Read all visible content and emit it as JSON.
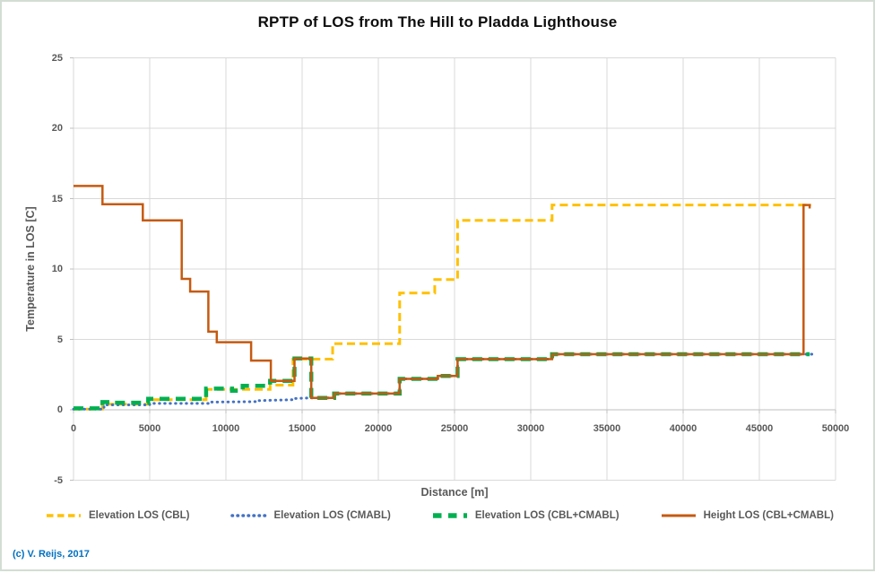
{
  "title": "RPTP of LOS from The Hill to Pladda Lighthouse",
  "copyright": "(c) V. Reijs, 2017",
  "colors": {
    "grid": "#D9D9D9",
    "axis": "#BFBFBF",
    "text": "#595959",
    "title_text": "#0d0d0d",
    "copyright_text": "#0070C0",
    "cbl_yellow": "#FFC000",
    "cmabl_blue": "#4472C4",
    "cbl_cmabl_green": "#00B050",
    "height_orange": "#C55A11"
  },
  "chart_data": {
    "type": "line",
    "title": "RPTP of LOS from The Hill to Pladda Lighthouse",
    "xlabel": "Distance [m]",
    "ylabel": "Temperature in LOS [C]",
    "xlim": [
      0,
      50000
    ],
    "ylim": [
      -5,
      25
    ],
    "x_ticks": [
      0,
      5000,
      10000,
      15000,
      20000,
      25000,
      30000,
      35000,
      40000,
      45000,
      50000
    ],
    "y_ticks": [
      25,
      20,
      15,
      10,
      5,
      0,
      -5
    ],
    "grid": true,
    "legend_position": "bottom",
    "series": [
      {
        "name": "Elevation LOS (CBL)",
        "color": "#FFC000",
        "style": "dash",
        "points": [
          [
            0,
            0.05
          ],
          [
            1900,
            0.05
          ],
          [
            1900,
            0.4
          ],
          [
            4900,
            0.4
          ],
          [
            4900,
            0.72
          ],
          [
            8700,
            0.72
          ],
          [
            8700,
            1.45
          ],
          [
            12900,
            1.45
          ],
          [
            12900,
            1.75
          ],
          [
            14400,
            1.75
          ],
          [
            14400,
            3.6
          ],
          [
            17000,
            3.6
          ],
          [
            17000,
            4.7
          ],
          [
            21400,
            4.7
          ],
          [
            21400,
            8.3
          ],
          [
            23700,
            8.3
          ],
          [
            23700,
            9.25
          ],
          [
            25200,
            9.25
          ],
          [
            25200,
            13.45
          ],
          [
            31400,
            13.45
          ],
          [
            31400,
            14.55
          ],
          [
            48400,
            14.55
          ]
        ]
      },
      {
        "name": "Elevation LOS (CMABL)",
        "color": "#4472C4",
        "style": "dot",
        "points": [
          [
            0,
            0.05
          ],
          [
            2000,
            0.05
          ],
          [
            2000,
            0.35
          ],
          [
            5000,
            0.35
          ],
          [
            5000,
            0.45
          ],
          [
            9000,
            0.45
          ],
          [
            9000,
            0.55
          ],
          [
            12000,
            0.58
          ],
          [
            12000,
            0.65
          ],
          [
            14500,
            0.72
          ],
          [
            14500,
            0.8
          ],
          [
            15600,
            0.85
          ],
          [
            17100,
            0.85
          ],
          [
            17100,
            1.15
          ],
          [
            21400,
            1.15
          ],
          [
            21400,
            2.2
          ],
          [
            23900,
            2.2
          ],
          [
            23900,
            2.4
          ],
          [
            25200,
            2.4
          ],
          [
            25200,
            3.6
          ],
          [
            31400,
            3.6
          ],
          [
            31400,
            3.95
          ],
          [
            48500,
            3.95
          ]
        ]
      },
      {
        "name": "Elevation LOS (CBL+CMABL)",
        "color": "#00B050",
        "style": "longdash",
        "points": [
          [
            0,
            0.1
          ],
          [
            1900,
            0.1
          ],
          [
            1900,
            0.55
          ],
          [
            2700,
            0.55
          ],
          [
            2700,
            0.5
          ],
          [
            4900,
            0.5
          ],
          [
            4900,
            0.78
          ],
          [
            8700,
            0.78
          ],
          [
            8700,
            1.5
          ],
          [
            10400,
            1.5
          ],
          [
            10400,
            1.35
          ],
          [
            11100,
            1.35
          ],
          [
            11100,
            1.7
          ],
          [
            12900,
            1.7
          ],
          [
            12900,
            2.05
          ],
          [
            14500,
            2.05
          ],
          [
            14500,
            3.65
          ],
          [
            15600,
            3.65
          ],
          [
            15600,
            0.85
          ],
          [
            17100,
            0.85
          ],
          [
            17100,
            1.15
          ],
          [
            21400,
            1.15
          ],
          [
            21400,
            2.2
          ],
          [
            23900,
            2.2
          ],
          [
            23900,
            2.4
          ],
          [
            25200,
            2.4
          ],
          [
            25200,
            3.6
          ],
          [
            31400,
            3.6
          ],
          [
            31400,
            3.95
          ],
          [
            48300,
            3.95
          ]
        ]
      },
      {
        "name": "Height LOS (CBL+CMABL)",
        "color": "#C55A11",
        "style": "solid",
        "points": [
          [
            0,
            15.9
          ],
          [
            1900,
            15.9
          ],
          [
            1900,
            14.6
          ],
          [
            4550,
            14.6
          ],
          [
            4550,
            13.45
          ],
          [
            7100,
            13.45
          ],
          [
            7100,
            9.3
          ],
          [
            7650,
            9.3
          ],
          [
            7650,
            8.4
          ],
          [
            8850,
            8.4
          ],
          [
            8850,
            5.55
          ],
          [
            9400,
            5.55
          ],
          [
            9400,
            4.8
          ],
          [
            11650,
            4.8
          ],
          [
            11650,
            3.5
          ],
          [
            12950,
            3.5
          ],
          [
            12950,
            2.05
          ],
          [
            14500,
            2.05
          ],
          [
            14500,
            3.65
          ],
          [
            15600,
            3.65
          ],
          [
            15600,
            0.85
          ],
          [
            17100,
            0.85
          ],
          [
            17100,
            1.15
          ],
          [
            21400,
            1.15
          ],
          [
            21400,
            2.2
          ],
          [
            23900,
            2.2
          ],
          [
            23900,
            2.4
          ],
          [
            25200,
            2.4
          ],
          [
            25200,
            3.6
          ],
          [
            31400,
            3.6
          ],
          [
            31400,
            3.95
          ],
          [
            47900,
            3.95
          ],
          [
            47900,
            14.55
          ],
          [
            48300,
            14.55
          ],
          [
            48300,
            14.3
          ]
        ]
      }
    ]
  }
}
